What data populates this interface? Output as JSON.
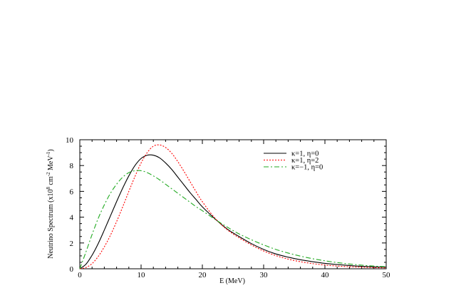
{
  "chart_data": {
    "type": "line",
    "xlabel": "E (MeV)",
    "ylabel": "Neutrino Spectrum (x10",
    "ylabel_sup1": "8",
    "ylabel_mid": " cm",
    "ylabel_sup2": "-2",
    "ylabel_end": " MeV",
    "ylabel_sup3": "-1",
    "ylabel_close": ")",
    "xlim": [
      0,
      50
    ],
    "ylim": [
      0,
      10
    ],
    "xticks": [
      0,
      10,
      20,
      30,
      40,
      50
    ],
    "yticks": [
      0,
      2,
      4,
      6,
      8,
      10
    ],
    "grid": false,
    "legend_position": "top-right",
    "series": [
      {
        "name": "κ=1, η=0",
        "color": "#000000",
        "dash": "solid",
        "x": [
          0,
          1,
          2,
          3,
          4,
          5,
          6,
          7,
          8,
          9,
          10,
          11,
          12,
          13,
          14,
          15,
          16,
          17,
          18,
          19,
          20,
          22,
          24,
          26,
          28,
          30,
          32,
          34,
          36,
          38,
          40,
          42,
          44,
          46,
          48,
          50
        ],
        "y": [
          0.0,
          0.35,
          1.05,
          1.95,
          3.0,
          4.1,
          5.2,
          6.25,
          7.2,
          8.0,
          8.55,
          8.8,
          8.8,
          8.6,
          8.2,
          7.7,
          7.1,
          6.5,
          5.9,
          5.35,
          4.8,
          3.9,
          3.1,
          2.5,
          1.95,
          1.5,
          1.15,
          0.9,
          0.7,
          0.55,
          0.42,
          0.33,
          0.25,
          0.19,
          0.15,
          0.12
        ]
      },
      {
        "name": "κ=1, η=2",
        "color": "#ff0000",
        "dash": "dotted",
        "x": [
          0,
          1,
          2,
          3,
          4,
          5,
          6,
          7,
          8,
          9,
          10,
          11,
          12,
          13,
          14,
          15,
          16,
          17,
          18,
          19,
          20,
          22,
          24,
          26,
          28,
          30,
          32,
          34,
          36,
          38,
          40,
          42,
          44,
          46,
          48,
          50
        ],
        "y": [
          0.0,
          0.1,
          0.4,
          0.95,
          1.7,
          2.6,
          3.65,
          4.8,
          6.0,
          7.15,
          8.2,
          9.0,
          9.5,
          9.6,
          9.4,
          8.95,
          8.3,
          7.55,
          6.75,
          5.95,
          5.2,
          3.95,
          3.05,
          2.4,
          1.85,
          1.38,
          1.02,
          0.75,
          0.55,
          0.4,
          0.29,
          0.21,
          0.16,
          0.12,
          0.09,
          0.07
        ]
      },
      {
        "name": "κ=−1, η=0",
        "color": "#22aa22",
        "dash": "dashdot",
        "x": [
          0,
          1,
          2,
          3,
          4,
          5,
          6,
          7,
          8,
          9,
          10,
          11,
          12,
          13,
          14,
          15,
          16,
          17,
          18,
          19,
          20,
          22,
          24,
          26,
          28,
          30,
          32,
          34,
          36,
          38,
          40,
          42,
          44,
          46,
          48,
          50
        ],
        "y": [
          0.0,
          1.3,
          2.65,
          3.9,
          4.95,
          5.85,
          6.55,
          7.1,
          7.45,
          7.6,
          7.6,
          7.45,
          7.2,
          6.9,
          6.55,
          6.2,
          5.85,
          5.5,
          5.15,
          4.8,
          4.5,
          3.85,
          3.25,
          2.7,
          2.25,
          1.85,
          1.5,
          1.22,
          0.98,
          0.78,
          0.62,
          0.48,
          0.37,
          0.28,
          0.21,
          0.16
        ]
      }
    ]
  }
}
